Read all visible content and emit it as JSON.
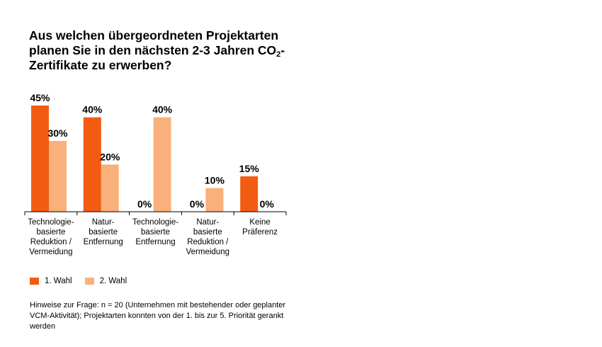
{
  "title": {
    "line1": "Aus welchen übergeordneten Projektarten",
    "line2_pre": "planen Sie in den nächsten 2-3 Jahren CO",
    "line2_sub": "2",
    "line2_post": "-",
    "line3": "Zertifikate zu erwerben?"
  },
  "colors": {
    "first": "#f25c12",
    "second": "#fab07a",
    "axis": "#000000"
  },
  "chart_data": {
    "type": "bar",
    "categories": [
      "Technologie-basierte Reduktion / Vermeidung",
      "Natur-basierte Entfernung",
      "Technologie-basierte Entfernung",
      "Natur-basierte Reduktion / Vermeidung",
      "Keine Präferenz"
    ],
    "category_lines": [
      [
        "Technologie-",
        "basierte",
        "Reduktion /",
        "Vermeidung"
      ],
      [
        "Natur-",
        "basierte",
        "Entfernung"
      ],
      [
        "Technologie-",
        "basierte",
        "Entfernung"
      ],
      [
        "Natur-",
        "basierte",
        "Reduktion /",
        "Vermeidung"
      ],
      [
        "Keine",
        "Präferenz"
      ]
    ],
    "series": [
      {
        "name": "1. Wahl",
        "values": [
          45,
          40,
          0,
          0,
          15
        ]
      },
      {
        "name": "2. Wahl",
        "values": [
          30,
          20,
          40,
          10,
          0
        ]
      }
    ],
    "ylim": [
      0,
      45
    ],
    "grid": false,
    "legend_position": "bottom-left"
  },
  "legend": {
    "first_label": "1. Wahl",
    "second_label": "2. Wahl"
  },
  "note": "Hinweise zur Frage: n = 20 (Unternehmen mit bestehender oder geplanter VCM-Aktivität); Projektarten konnten von der 1. bis zur 5. Priorität gerankt werden"
}
